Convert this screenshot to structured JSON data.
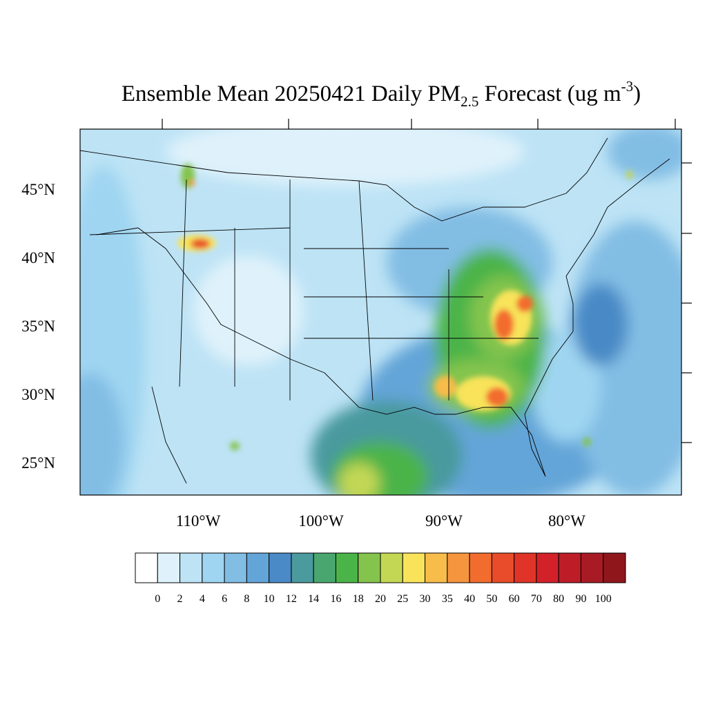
{
  "map": {
    "title": {
      "main": "Ensemble Mean 20250421 Daily PM",
      "sub": "2.5",
      "rest": " Forecast (ug m",
      "sup": "-3",
      "end": ")"
    },
    "lat_ticks": [
      {
        "value": 45,
        "label": "45°N"
      },
      {
        "value": 40,
        "label": "40°N"
      },
      {
        "value": 35,
        "label": "35°N"
      },
      {
        "value": 30,
        "label": "30°N"
      },
      {
        "value": 25,
        "label": "25°N"
      }
    ],
    "lon_ticks": [
      {
        "value": -110,
        "label": "110°W"
      },
      {
        "value": -100,
        "label": "100°W"
      },
      {
        "value": -90,
        "label": "90°W"
      },
      {
        "value": -80,
        "label": "80°W"
      }
    ],
    "colorbar": {
      "levels": [
        0,
        2,
        4,
        6,
        8,
        10,
        12,
        14,
        16,
        18,
        20,
        25,
        30,
        35,
        40,
        50,
        60,
        70,
        80,
        90,
        100
      ],
      "colors": [
        "#ffffff",
        "#dff2fb",
        "#bde3f5",
        "#9fd5f1",
        "#82bde4",
        "#63a5d8",
        "#4a8ac6",
        "#4a9a9e",
        "#4aa66f",
        "#4bb449",
        "#84c44d",
        "#c3d754",
        "#f8e35a",
        "#f7bc4a",
        "#f5953e",
        "#f26c2e",
        "#e84c2b",
        "#df3427",
        "#d32129",
        "#bd1d27",
        "#a91b24",
        "#8f161b"
      ]
    }
  }
}
